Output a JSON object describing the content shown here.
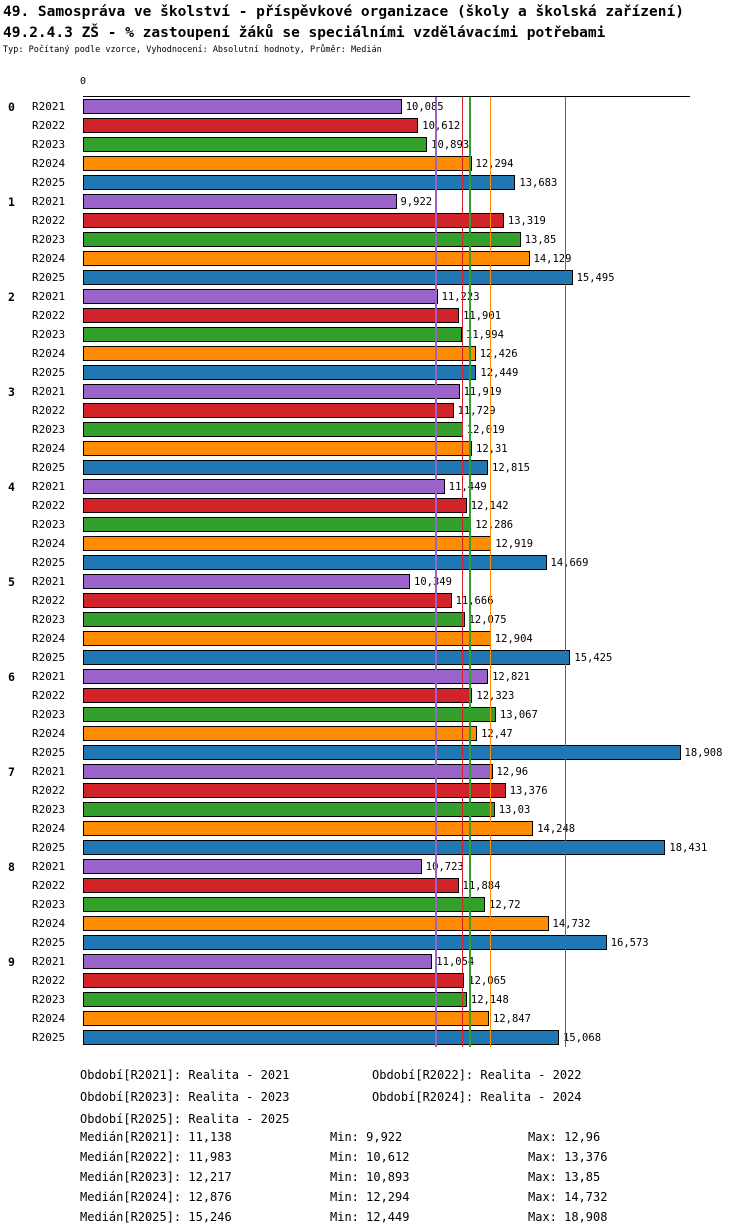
{
  "header": {
    "title_line1": "49. Samospráva ve školství - příspěvkové organizace (školy a školská zařízení)",
    "title_line2": "49.2.4.3 ZŠ - % zastoupení žáků se speciálními vzdělávacími potřebami",
    "subtitle": "Typ: Počítaný podle vzorce, Vyhodnocení: Absolutní hodnoty, Průměr: Medián"
  },
  "chart_data": {
    "type": "bar",
    "orientation": "horizontal",
    "title": "49.2.4.3 ZŠ - % zastoupení žáků se speciálními vzdělávacími potřebami",
    "x_axis": {
      "origin_label": "0",
      "min": 0,
      "implied_max": 19
    },
    "grid": "median-lines-per-series",
    "legend_position": "bottom",
    "categories": [
      "0",
      "1",
      "2",
      "3",
      "4",
      "5",
      "6",
      "7",
      "8",
      "9"
    ],
    "series": [
      {
        "name": "R2021",
        "color": "#9A63C9",
        "median": 11.138,
        "values": [
          10.085,
          9.922,
          11.223,
          11.919,
          11.449,
          10.349,
          12.821,
          12.96,
          10.723,
          11.054
        ],
        "labels": [
          "10,085",
          "9,922",
          "11,223",
          "11,919",
          "11,449",
          "10,349",
          "12,821",
          "12,96",
          "10,723",
          "11,054"
        ]
      },
      {
        "name": "R2022",
        "color": "#D2232A",
        "median": 11.983,
        "values": [
          10.612,
          13.319,
          11.901,
          11.729,
          12.142,
          11.666,
          12.323,
          13.376,
          11.884,
          12.065
        ],
        "labels": [
          "10,612",
          "13,319",
          "11,901",
          "11,729",
          "12,142",
          "11,666",
          "12,323",
          "13,376",
          "11,884",
          "12,065"
        ]
      },
      {
        "name": "R2023",
        "color": "#33A02C",
        "median": 12.217,
        "values": [
          10.893,
          13.85,
          11.994,
          12.019,
          12.286,
          12.075,
          13.067,
          13.03,
          12.72,
          12.148
        ],
        "labels": [
          "10,893",
          "13,85",
          "11,994",
          "12,019",
          "12,286",
          "12,075",
          "13,067",
          "13,03",
          "12,72",
          "12,148"
        ]
      },
      {
        "name": "R2024",
        "color": "#FF8C00",
        "median": 12.876,
        "values": [
          12.294,
          14.129,
          12.426,
          12.31,
          12.919,
          12.904,
          12.47,
          14.248,
          14.732,
          12.847
        ],
        "labels": [
          "12,294",
          "14,129",
          "12,426",
          "12,31",
          "12,919",
          "12,904",
          "12,47",
          "14,248",
          "14,732",
          "12,847"
        ]
      },
      {
        "name": "R2025",
        "color": "#1F77B4",
        "median": 15.246,
        "values": [
          13.683,
          15.495,
          12.449,
          12.815,
          14.669,
          15.425,
          18.908,
          18.431,
          16.573,
          15.068
        ],
        "labels": [
          "13,683",
          "15,495",
          "12,449",
          "12,815",
          "14,669",
          "15,425",
          "18,908",
          "18,431",
          "16,573",
          "15,068"
        ]
      }
    ]
  },
  "legend": {
    "items": [
      "Období[R2021]: Realita - 2021",
      "Období[R2022]: Realita - 2022",
      "Období[R2023]: Realita - 2023",
      "Období[R2024]: Realita - 2024",
      "Období[R2025]: Realita - 2025"
    ]
  },
  "stats": {
    "rows": [
      {
        "median": "Medián[R2021]: 11,138",
        "min": "Min: 9,922",
        "max": "Max: 12,96"
      },
      {
        "median": "Medián[R2022]: 11,983",
        "min": "Min: 10,612",
        "max": "Max: 13,376"
      },
      {
        "median": "Medián[R2023]: 12,217",
        "min": "Min: 10,893",
        "max": "Max: 13,85"
      },
      {
        "median": "Medián[R2024]: 12,876",
        "min": "Min: 12,294",
        "max": "Max: 14,732"
      },
      {
        "median": "Medián[R2025]: 15,246",
        "min": "Min: 12,449",
        "max": "Max: 18,908"
      }
    ]
  }
}
